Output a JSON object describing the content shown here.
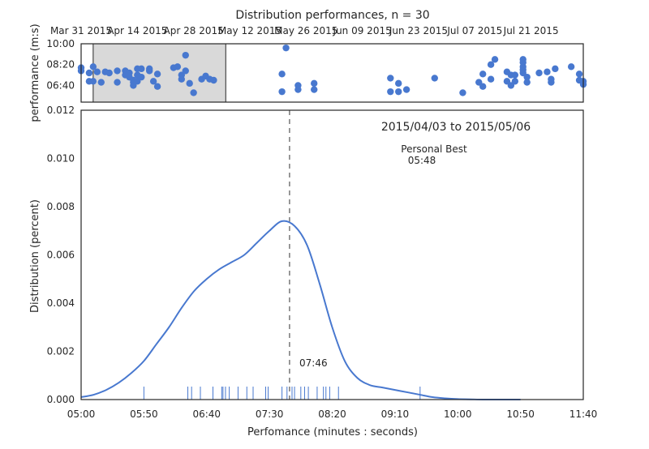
{
  "chart_data": [
    {
      "type": "scatter",
      "title": "Distribution performances, n = 30",
      "ylabel": "performance (m:s)",
      "x_tick_labels": [
        "Mar 31 2015",
        "Apr 14 2015",
        "Apr 28 2015",
        "May 12 2015",
        "May 26 2015",
        "Jun 09 2015",
        "Jun 23 2015",
        "Jul 07 2015",
        "Jul 21 2015"
      ],
      "x_ticks": [
        "2015-03-31",
        "2015-04-14",
        "2015-04-28",
        "2015-05-12",
        "2015-05-26",
        "2015-06-09",
        "2015-06-23",
        "2015-07-07",
        "2015-07-21"
      ],
      "xlim": [
        "2015-03-31",
        "2015-08-03"
      ],
      "y_tick_labels": [
        "10:00",
        "08:20",
        "06:40"
      ],
      "y_ticks": [
        600,
        500,
        400
      ],
      "ylim": [
        320,
        600
      ],
      "y_unit": "seconds",
      "highlight_range": [
        "2015-04-03",
        "2015-05-06"
      ],
      "highlight_color": "#d9d9d9",
      "point_color": "#4878cf",
      "points": [
        {
          "x": "2015-03-31",
          "y": 485
        },
        {
          "x": "2015-03-31",
          "y": 470
        },
        {
          "x": "2015-04-02",
          "y": 460
        },
        {
          "x": "2015-04-02",
          "y": 420
        },
        {
          "x": "2015-04-03",
          "y": 420
        },
        {
          "x": "2015-04-03",
          "y": 490
        },
        {
          "x": "2015-04-04",
          "y": 465
        },
        {
          "x": "2015-04-05",
          "y": 415
        },
        {
          "x": "2015-04-06",
          "y": 465
        },
        {
          "x": "2015-04-07",
          "y": 460
        },
        {
          "x": "2015-04-09",
          "y": 470
        },
        {
          "x": "2015-04-09",
          "y": 415
        },
        {
          "x": "2015-04-11",
          "y": 470
        },
        {
          "x": "2015-04-11",
          "y": 450
        },
        {
          "x": "2015-04-12",
          "y": 460
        },
        {
          "x": "2015-04-12",
          "y": 440
        },
        {
          "x": "2015-04-13",
          "y": 425
        },
        {
          "x": "2015-04-13",
          "y": 415
        },
        {
          "x": "2015-04-13",
          "y": 400
        },
        {
          "x": "2015-04-14",
          "y": 480
        },
        {
          "x": "2015-04-14",
          "y": 450
        },
        {
          "x": "2015-04-14",
          "y": 420
        },
        {
          "x": "2015-04-15",
          "y": 480
        },
        {
          "x": "2015-04-15",
          "y": 440
        },
        {
          "x": "2015-04-17",
          "y": 470
        },
        {
          "x": "2015-04-17",
          "y": 480
        },
        {
          "x": "2015-04-18",
          "y": 420
        },
        {
          "x": "2015-04-19",
          "y": 455
        },
        {
          "x": "2015-04-19",
          "y": 395
        },
        {
          "x": "2015-04-23",
          "y": 485
        },
        {
          "x": "2015-04-24",
          "y": 490
        },
        {
          "x": "2015-04-25",
          "y": 450
        },
        {
          "x": "2015-04-25",
          "y": 430
        },
        {
          "x": "2015-04-26",
          "y": 470
        },
        {
          "x": "2015-04-26",
          "y": 545
        },
        {
          "x": "2015-04-27",
          "y": 410
        },
        {
          "x": "2015-04-28",
          "y": 365
        },
        {
          "x": "2015-04-30",
          "y": 430
        },
        {
          "x": "2015-05-01",
          "y": 445
        },
        {
          "x": "2015-05-02",
          "y": 430
        },
        {
          "x": "2015-05-03",
          "y": 425
        },
        {
          "x": "2015-05-20",
          "y": 455
        },
        {
          "x": "2015-05-20",
          "y": 370
        },
        {
          "x": "2015-05-21",
          "y": 580
        },
        {
          "x": "2015-05-24",
          "y": 400
        },
        {
          "x": "2015-05-24",
          "y": 380
        },
        {
          "x": "2015-05-28",
          "y": 410
        },
        {
          "x": "2015-05-28",
          "y": 380
        },
        {
          "x": "2015-06-16",
          "y": 435
        },
        {
          "x": "2015-06-16",
          "y": 370
        },
        {
          "x": "2015-06-18",
          "y": 410
        },
        {
          "x": "2015-06-18",
          "y": 370
        },
        {
          "x": "2015-06-20",
          "y": 380
        },
        {
          "x": "2015-06-27",
          "y": 435
        },
        {
          "x": "2015-07-04",
          "y": 365
        },
        {
          "x": "2015-07-08",
          "y": 415
        },
        {
          "x": "2015-07-09",
          "y": 455
        },
        {
          "x": "2015-07-09",
          "y": 395
        },
        {
          "x": "2015-07-11",
          "y": 500
        },
        {
          "x": "2015-07-11",
          "y": 430
        },
        {
          "x": "2015-07-12",
          "y": 525
        },
        {
          "x": "2015-07-15",
          "y": 465
        },
        {
          "x": "2015-07-15",
          "y": 420
        },
        {
          "x": "2015-07-16",
          "y": 450
        },
        {
          "x": "2015-07-16",
          "y": 400
        },
        {
          "x": "2015-07-17",
          "y": 450
        },
        {
          "x": "2015-07-17",
          "y": 420
        },
        {
          "x": "2015-07-19",
          "y": 525
        },
        {
          "x": "2015-07-19",
          "y": 510
        },
        {
          "x": "2015-07-19",
          "y": 490
        },
        {
          "x": "2015-07-19",
          "y": 475
        },
        {
          "x": "2015-07-19",
          "y": 460
        },
        {
          "x": "2015-07-20",
          "y": 440
        },
        {
          "x": "2015-07-20",
          "y": 415
        },
        {
          "x": "2015-07-23",
          "y": 460
        },
        {
          "x": "2015-07-25",
          "y": 465
        },
        {
          "x": "2015-07-26",
          "y": 430
        },
        {
          "x": "2015-07-26",
          "y": 415
        },
        {
          "x": "2015-07-27",
          "y": 480
        },
        {
          "x": "2015-07-31",
          "y": 490
        },
        {
          "x": "2015-08-02",
          "y": 455
        },
        {
          "x": "2015-08-02",
          "y": 425
        },
        {
          "x": "2015-08-03",
          "y": 420
        },
        {
          "x": "2015-08-03",
          "y": 405
        }
      ]
    },
    {
      "type": "line",
      "subtype": "kernel-density",
      "xlabel": "Perfomance (minutes : seconds)",
      "ylabel": "Distribution (percent)",
      "x_unit": "seconds",
      "x_ticks": [
        300,
        350,
        400,
        450,
        500,
        550,
        600,
        650,
        700
      ],
      "x_tick_labels": [
        "05:00",
        "05:50",
        "06:40",
        "07:30",
        "08:20",
        "09:10",
        "10:00",
        "10:50",
        "11:40"
      ],
      "xlim": [
        300,
        700
      ],
      "y_ticks": [
        0.0,
        0.002,
        0.004,
        0.006,
        0.008,
        0.01,
        0.012
      ],
      "y_tick_labels": [
        "0.000",
        "0.002",
        "0.004",
        "0.006",
        "0.008",
        "0.010",
        "0.012"
      ],
      "ylim": [
        0,
        0.012
      ],
      "line_color": "#4878cf",
      "curve": {
        "x": [
          300,
          310,
          320,
          330,
          340,
          350,
          360,
          370,
          380,
          390,
          400,
          410,
          420,
          430,
          440,
          450,
          460,
          470,
          480,
          490,
          500,
          510,
          520,
          530,
          540,
          550,
          560,
          570,
          580,
          590,
          600,
          610,
          620,
          630,
          640,
          650
        ],
        "y": [
          0.0001,
          0.0002,
          0.0004,
          0.0007,
          0.0011,
          0.0016,
          0.0023,
          0.003,
          0.0038,
          0.0045,
          0.005,
          0.0054,
          0.0057,
          0.006,
          0.0065,
          0.007,
          0.0074,
          0.0072,
          0.0064,
          0.0048,
          0.003,
          0.0016,
          0.0009,
          0.0006,
          0.0005,
          0.0004,
          0.0003,
          0.0002,
          0.0001,
          5e-05,
          2e-05,
          1e-05,
          0.0,
          0.0,
          0.0,
          0.0
        ]
      },
      "rug": [
        350,
        385,
        388,
        395,
        405,
        412,
        413,
        415,
        418,
        425,
        432,
        437,
        447,
        449,
        460,
        464,
        468,
        470,
        475,
        478,
        481,
        488,
        493,
        495,
        498,
        505,
        570
      ],
      "reference_line": {
        "x": 466,
        "label": "07:46",
        "style": "dashed",
        "color": "#808080"
      },
      "annotations": [
        {
          "text": "2015/04/03 to 2015/05/06"
        },
        {
          "text": "Personal Best"
        },
        {
          "text": "05:48"
        }
      ]
    }
  ]
}
